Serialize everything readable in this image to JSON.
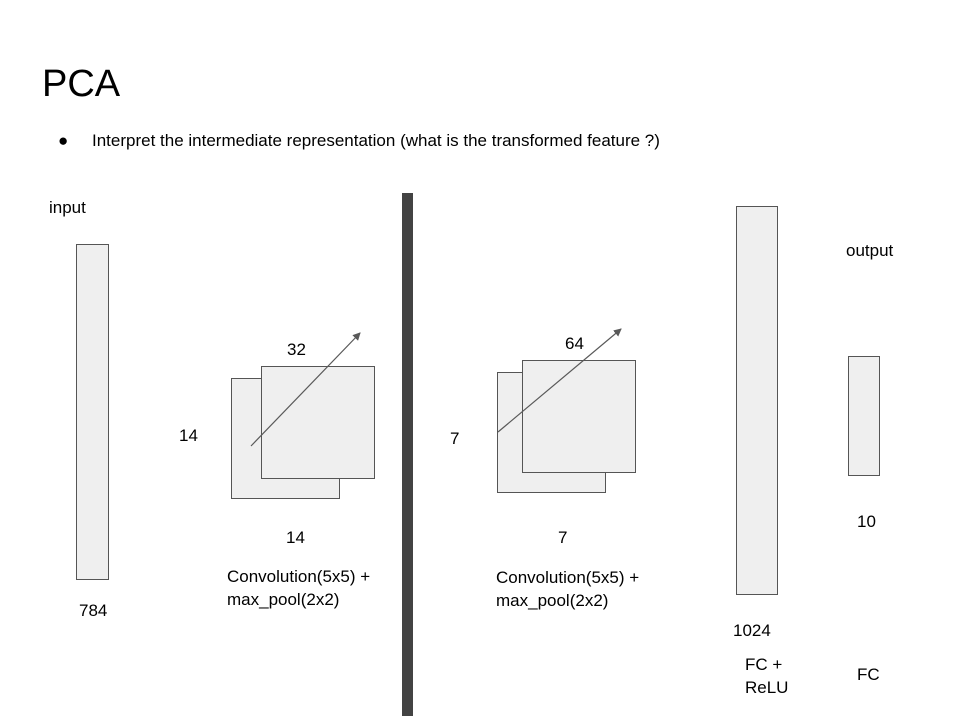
{
  "slide": {
    "title": "PCA",
    "bullet_glyph": "●",
    "bullet_text": "Interpret the intermediate representation (what is the transformed feature ?)"
  },
  "diagram": {
    "input": {
      "label": "input",
      "size": "784"
    },
    "conv1": {
      "depth": "32",
      "height": "14",
      "width": "14",
      "label_line1": "Convolution(5x5) +",
      "label_line2": "max_pool(2x2)"
    },
    "conv2": {
      "depth": "64",
      "height": "7",
      "width": "7",
      "label_line1": "Convolution(5x5) +",
      "label_line2": "max_pool(2x2)"
    },
    "fc1": {
      "size": "1024",
      "label_line1": "FC +",
      "label_line2": "ReLU"
    },
    "output": {
      "label": "output",
      "size": "10",
      "layer_label": "FC"
    }
  },
  "colors": {
    "box_fill": "#efefef",
    "box_border": "#555555",
    "divider": "#434343",
    "arrow": "#595959"
  }
}
